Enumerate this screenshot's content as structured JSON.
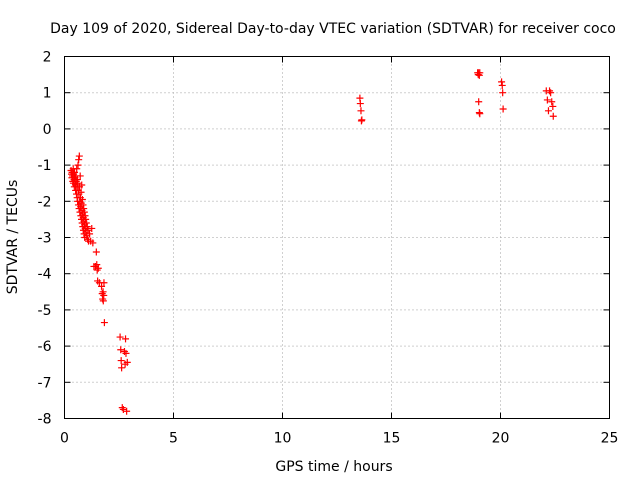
{
  "chart_data": {
    "type": "scatter",
    "title": "Day 109 of 2020, Sidereal Day-to-day VTEC variation (SDTVAR) for receiver coco",
    "xlabel": "GPS time / hours",
    "ylabel": "SDTVAR / TECUs",
    "xlim": [
      0,
      25
    ],
    "ylim": [
      -8,
      2
    ],
    "xticks": [
      0,
      5,
      10,
      15,
      20,
      25
    ],
    "yticks": [
      -8,
      -7,
      -6,
      -5,
      -4,
      -3,
      -2,
      -1,
      0,
      1,
      2
    ],
    "grid": true,
    "marker": "+",
    "color": "#ff0000",
    "series": [
      {
        "name": "SDTVAR",
        "points": [
          [
            0.3,
            -1.15
          ],
          [
            0.32,
            -1.25
          ],
          [
            0.34,
            -1.35
          ],
          [
            0.35,
            -1.2
          ],
          [
            0.37,
            -1.3
          ],
          [
            0.38,
            -1.45
          ],
          [
            0.4,
            -1.1
          ],
          [
            0.41,
            -1.5
          ],
          [
            0.42,
            -1.25
          ],
          [
            0.44,
            -1.4
          ],
          [
            0.45,
            -1.6
          ],
          [
            0.46,
            -1.2
          ],
          [
            0.48,
            -1.35
          ],
          [
            0.5,
            -1.55
          ],
          [
            0.51,
            -1.7
          ],
          [
            0.52,
            -1.3
          ],
          [
            0.54,
            -1.45
          ],
          [
            0.55,
            -1.8
          ],
          [
            0.56,
            -1.1
          ],
          [
            0.57,
            -1.6
          ],
          [
            0.58,
            -1.9
          ],
          [
            0.59,
            -1.4
          ],
          [
            0.6,
            -2.0
          ],
          [
            0.61,
            -1.5
          ],
          [
            0.62,
            -1.0
          ],
          [
            0.63,
            -1.7
          ],
          [
            0.64,
            -2.1
          ],
          [
            0.65,
            -0.85
          ],
          [
            0.66,
            -1.8
          ],
          [
            0.67,
            -2.2
          ],
          [
            0.68,
            -0.75
          ],
          [
            0.69,
            -1.6
          ],
          [
            0.7,
            -2.0
          ],
          [
            0.71,
            -2.3
          ],
          [
            0.72,
            -1.3
          ],
          [
            0.73,
            -1.9
          ],
          [
            0.74,
            -2.15
          ],
          [
            0.75,
            -2.4
          ],
          [
            0.76,
            -1.75
          ],
          [
            0.77,
            -2.05
          ],
          [
            0.78,
            -2.5
          ],
          [
            0.79,
            -1.55
          ],
          [
            0.8,
            -2.25
          ],
          [
            0.81,
            -2.6
          ],
          [
            0.82,
            -1.95
          ],
          [
            0.83,
            -2.35
          ],
          [
            0.84,
            -2.7
          ],
          [
            0.85,
            -2.1
          ],
          [
            0.86,
            -2.45
          ],
          [
            0.87,
            -2.8
          ],
          [
            0.88,
            -2.2
          ],
          [
            0.89,
            -2.55
          ],
          [
            0.9,
            -2.9
          ],
          [
            0.91,
            -2.3
          ],
          [
            0.92,
            -2.65
          ],
          [
            0.93,
            -3.0
          ],
          [
            0.94,
            -2.4
          ],
          [
            0.95,
            -2.75
          ],
          [
            0.97,
            -2.5
          ],
          [
            0.98,
            -2.85
          ],
          [
            1.0,
            -2.6
          ],
          [
            1.02,
            -2.95
          ],
          [
            1.04,
            -2.7
          ],
          [
            1.06,
            -3.05
          ],
          [
            1.08,
            -2.8
          ],
          [
            1.1,
            -3.1
          ],
          [
            1.15,
            -2.9
          ],
          [
            1.2,
            -3.1
          ],
          [
            1.25,
            -2.75
          ],
          [
            1.3,
            -3.15
          ],
          [
            1.35,
            -3.8
          ],
          [
            1.42,
            -3.8
          ],
          [
            1.46,
            -3.4
          ],
          [
            1.48,
            -3.75
          ],
          [
            1.5,
            -3.9
          ],
          [
            1.52,
            -4.2
          ],
          [
            1.55,
            -3.85
          ],
          [
            1.6,
            -4.25
          ],
          [
            1.7,
            -4.35
          ],
          [
            1.73,
            -4.55
          ],
          [
            1.75,
            -4.7
          ],
          [
            1.77,
            -4.5
          ],
          [
            1.78,
            -4.75
          ],
          [
            1.8,
            -4.6
          ],
          [
            1.81,
            -4.25
          ],
          [
            1.83,
            -5.35
          ],
          [
            2.55,
            -5.75
          ],
          [
            2.58,
            -6.1
          ],
          [
            2.6,
            -6.4
          ],
          [
            2.62,
            -6.6
          ],
          [
            2.65,
            -7.7
          ],
          [
            2.7,
            -7.75
          ],
          [
            2.75,
            -6.15
          ],
          [
            2.78,
            -6.5
          ],
          [
            2.8,
            -5.8
          ],
          [
            2.82,
            -6.2
          ],
          [
            2.85,
            -7.8
          ],
          [
            2.88,
            -6.45
          ],
          [
            13.55,
            0.85
          ],
          [
            13.57,
            0.7
          ],
          [
            13.6,
            0.5
          ],
          [
            13.62,
            0.22
          ],
          [
            13.64,
            0.25
          ],
          [
            18.95,
            1.55
          ],
          [
            18.98,
            1.5
          ],
          [
            19.0,
            1.55
          ],
          [
            19.03,
            1.48
          ],
          [
            19.05,
            1.55
          ],
          [
            19.0,
            0.75
          ],
          [
            19.03,
            0.45
          ],
          [
            19.05,
            0.42
          ],
          [
            20.05,
            1.3
          ],
          [
            20.08,
            1.2
          ],
          [
            20.1,
            1.0
          ],
          [
            20.12,
            0.55
          ],
          [
            22.1,
            1.05
          ],
          [
            22.15,
            0.8
          ],
          [
            22.2,
            0.5
          ],
          [
            22.25,
            1.05
          ],
          [
            22.3,
            1.0
          ],
          [
            22.35,
            0.75
          ],
          [
            22.4,
            0.62
          ],
          [
            22.42,
            0.35
          ]
        ]
      }
    ]
  }
}
